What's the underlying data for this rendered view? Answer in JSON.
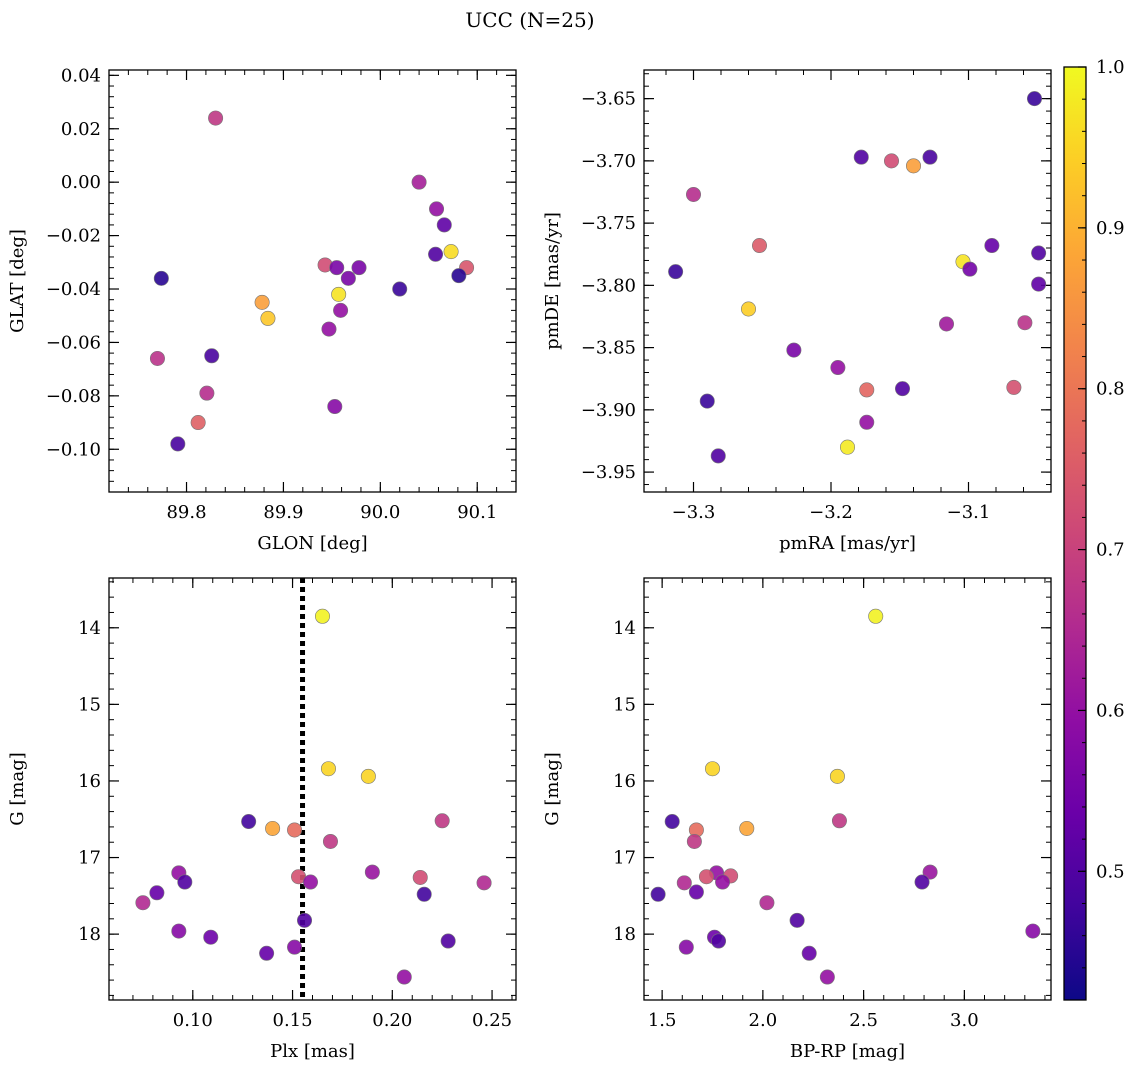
{
  "figure": {
    "title": "UCC (N=25)"
  },
  "colorbar": {
    "min": 0.42,
    "max": 1.0,
    "ticks": [
      0.5,
      0.6,
      0.7,
      0.8,
      0.9,
      1.0
    ],
    "tick_labels": [
      "0.5",
      "0.6",
      "0.7",
      "0.8",
      "0.9",
      "1.0"
    ],
    "colormap": "plasma",
    "colors": [
      "#0d0887",
      "#41049d",
      "#6a00a8",
      "#8f0da4",
      "#b12a90",
      "#cc4778",
      "#e16462",
      "#f2844b",
      "#fca636",
      "#fcce25",
      "#f0f921"
    ]
  },
  "chart_data": [
    {
      "type": "scatter",
      "id": "glon-glat",
      "xlabel": "GLON [deg]",
      "ylabel": "GLAT [deg]",
      "xlim": [
        89.72,
        90.14
      ],
      "ylim": [
        -0.116,
        0.042
      ],
      "y_inverted": false,
      "xticks": [
        89.8,
        89.9,
        90.0,
        90.1
      ],
      "xtick_labels": [
        "89.8",
        "89.9",
        "90.0",
        "90.1"
      ],
      "yticks": [
        -0.1,
        -0.08,
        -0.06,
        -0.04,
        -0.02,
        0.0,
        0.02,
        0.04
      ],
      "ytick_labels": [
        "−0.10",
        "−0.08",
        "−0.06",
        "−0.04",
        "−0.02",
        "0.00",
        "0.02",
        "0.04"
      ],
      "points": [
        {
          "x": 89.83,
          "y": 0.024,
          "c": 0.68
        },
        {
          "x": 90.04,
          "y": 0.0,
          "c": 0.63
        },
        {
          "x": 90.058,
          "y": -0.01,
          "c": 0.6
        },
        {
          "x": 90.066,
          "y": -0.016,
          "c": 0.52
        },
        {
          "x": 90.057,
          "y": -0.027,
          "c": 0.5
        },
        {
          "x": 90.073,
          "y": -0.026,
          "c": 0.96
        },
        {
          "x": 90.089,
          "y": -0.032,
          "c": 0.74
        },
        {
          "x": 90.081,
          "y": -0.035,
          "c": 0.45
        },
        {
          "x": 89.943,
          "y": -0.031,
          "c": 0.72
        },
        {
          "x": 89.955,
          "y": -0.032,
          "c": 0.56
        },
        {
          "x": 89.978,
          "y": -0.032,
          "c": 0.56
        },
        {
          "x": 89.967,
          "y": -0.036,
          "c": 0.56
        },
        {
          "x": 89.774,
          "y": -0.036,
          "c": 0.45
        },
        {
          "x": 90.02,
          "y": -0.04,
          "c": 0.47
        },
        {
          "x": 89.957,
          "y": -0.042,
          "c": 0.97
        },
        {
          "x": 89.878,
          "y": -0.045,
          "c": 0.87
        },
        {
          "x": 89.959,
          "y": -0.048,
          "c": 0.6
        },
        {
          "x": 89.884,
          "y": -0.051,
          "c": 0.93
        },
        {
          "x": 89.947,
          "y": -0.055,
          "c": 0.6
        },
        {
          "x": 89.826,
          "y": -0.065,
          "c": 0.49
        },
        {
          "x": 89.77,
          "y": -0.066,
          "c": 0.67
        },
        {
          "x": 89.821,
          "y": -0.079,
          "c": 0.66
        },
        {
          "x": 89.953,
          "y": -0.084,
          "c": 0.58
        },
        {
          "x": 89.812,
          "y": -0.09,
          "c": 0.76
        },
        {
          "x": 89.791,
          "y": -0.098,
          "c": 0.49
        }
      ]
    },
    {
      "type": "scatter",
      "id": "pmra-pmde",
      "xlabel": "pmRA [mas/yr]",
      "ylabel": "pmDE [mas/yr]",
      "xlim": [
        -3.336,
        -3.04
      ],
      "ylim": [
        -3.966,
        -3.627
      ],
      "y_inverted": false,
      "xticks": [
        -3.3,
        -3.2,
        -3.1
      ],
      "xtick_labels": [
        "−3.3",
        "−3.2",
        "−3.1"
      ],
      "yticks": [
        -3.95,
        -3.9,
        -3.85,
        -3.8,
        -3.75,
        -3.7,
        -3.65
      ],
      "ytick_labels": [
        "−3.95",
        "−3.90",
        "−3.85",
        "−3.80",
        "−3.75",
        "−3.70",
        "−3.65"
      ],
      "points": [
        {
          "x": -3.052,
          "y": -3.65,
          "c": 0.47
        },
        {
          "x": -3.178,
          "y": -3.697,
          "c": 0.5
        },
        {
          "x": -3.156,
          "y": -3.7,
          "c": 0.72
        },
        {
          "x": -3.14,
          "y": -3.704,
          "c": 0.87
        },
        {
          "x": -3.128,
          "y": -3.697,
          "c": 0.49
        },
        {
          "x": -3.3,
          "y": -3.727,
          "c": 0.66
        },
        {
          "x": -3.252,
          "y": -3.768,
          "c": 0.75
        },
        {
          "x": -3.083,
          "y": -3.768,
          "c": 0.53
        },
        {
          "x": -3.049,
          "y": -3.774,
          "c": 0.5
        },
        {
          "x": -3.104,
          "y": -3.781,
          "c": 0.97
        },
        {
          "x": -3.099,
          "y": -3.787,
          "c": 0.55
        },
        {
          "x": -3.313,
          "y": -3.789,
          "c": 0.47
        },
        {
          "x": -3.049,
          "y": -3.799,
          "c": 0.52
        },
        {
          "x": -3.26,
          "y": -3.819,
          "c": 0.94
        },
        {
          "x": -3.116,
          "y": -3.831,
          "c": 0.62
        },
        {
          "x": -3.059,
          "y": -3.83,
          "c": 0.67
        },
        {
          "x": -3.227,
          "y": -3.852,
          "c": 0.56
        },
        {
          "x": -3.195,
          "y": -3.866,
          "c": 0.6
        },
        {
          "x": -3.067,
          "y": -3.882,
          "c": 0.73
        },
        {
          "x": -3.174,
          "y": -3.884,
          "c": 0.77
        },
        {
          "x": -3.148,
          "y": -3.883,
          "c": 0.5
        },
        {
          "x": -3.29,
          "y": -3.893,
          "c": 0.47
        },
        {
          "x": -3.174,
          "y": -3.91,
          "c": 0.6
        },
        {
          "x": -3.188,
          "y": -3.93,
          "c": 0.98
        },
        {
          "x": -3.282,
          "y": -3.937,
          "c": 0.5
        }
      ]
    },
    {
      "type": "scatter",
      "id": "plx-g",
      "xlabel": "Plx [mas]",
      "ylabel": "G [mag]",
      "xlim": [
        0.058,
        0.262
      ],
      "ylim": [
        18.86,
        13.35
      ],
      "y_inverted": true,
      "xticks": [
        0.1,
        0.15,
        0.2,
        0.25
      ],
      "xtick_labels": [
        "0.10",
        "0.15",
        "0.20",
        "0.25"
      ],
      "yticks": [
        14,
        15,
        16,
        17,
        18
      ],
      "ytick_labels": [
        "14",
        "15",
        "16",
        "17",
        "18"
      ],
      "vline": 0.155,
      "points": [
        {
          "x": 0.165,
          "y": 13.85,
          "c": 0.99
        },
        {
          "x": 0.168,
          "y": 15.84,
          "c": 0.95
        },
        {
          "x": 0.188,
          "y": 15.94,
          "c": 0.95
        },
        {
          "x": 0.128,
          "y": 16.53,
          "c": 0.48
        },
        {
          "x": 0.225,
          "y": 16.52,
          "c": 0.68
        },
        {
          "x": 0.14,
          "y": 16.62,
          "c": 0.88
        },
        {
          "x": 0.151,
          "y": 16.64,
          "c": 0.78
        },
        {
          "x": 0.169,
          "y": 16.79,
          "c": 0.68
        },
        {
          "x": 0.093,
          "y": 17.2,
          "c": 0.6
        },
        {
          "x": 0.19,
          "y": 17.19,
          "c": 0.61
        },
        {
          "x": 0.153,
          "y": 17.25,
          "c": 0.73
        },
        {
          "x": 0.214,
          "y": 17.26,
          "c": 0.72
        },
        {
          "x": 0.096,
          "y": 17.32,
          "c": 0.5
        },
        {
          "x": 0.159,
          "y": 17.32,
          "c": 0.6
        },
        {
          "x": 0.246,
          "y": 17.33,
          "c": 0.65
        },
        {
          "x": 0.082,
          "y": 17.46,
          "c": 0.53
        },
        {
          "x": 0.216,
          "y": 17.48,
          "c": 0.48
        },
        {
          "x": 0.075,
          "y": 17.59,
          "c": 0.65
        },
        {
          "x": 0.156,
          "y": 17.82,
          "c": 0.5
        },
        {
          "x": 0.093,
          "y": 17.96,
          "c": 0.58
        },
        {
          "x": 0.109,
          "y": 18.04,
          "c": 0.54
        },
        {
          "x": 0.228,
          "y": 18.09,
          "c": 0.5
        },
        {
          "x": 0.151,
          "y": 18.17,
          "c": 0.58
        },
        {
          "x": 0.137,
          "y": 18.25,
          "c": 0.53
        },
        {
          "x": 0.206,
          "y": 18.56,
          "c": 0.6
        }
      ]
    },
    {
      "type": "scatter",
      "id": "bprp-g",
      "xlabel": "BP-RP [mag]",
      "ylabel": "G [mag]",
      "xlim": [
        1.41,
        3.43
      ],
      "ylim": [
        18.86,
        13.35
      ],
      "y_inverted": true,
      "xticks": [
        1.5,
        2.0,
        2.5,
        3.0
      ],
      "xtick_labels": [
        "1.5",
        "2.0",
        "2.5",
        "3.0"
      ],
      "yticks": [
        14,
        15,
        16,
        17,
        18
      ],
      "ytick_labels": [
        "14",
        "15",
        "16",
        "17",
        "18"
      ],
      "points": [
        {
          "x": 2.56,
          "y": 13.85,
          "c": 0.99
        },
        {
          "x": 1.75,
          "y": 15.84,
          "c": 0.95
        },
        {
          "x": 2.37,
          "y": 15.94,
          "c": 0.95
        },
        {
          "x": 1.55,
          "y": 16.53,
          "c": 0.48
        },
        {
          "x": 2.38,
          "y": 16.52,
          "c": 0.68
        },
        {
          "x": 1.92,
          "y": 16.62,
          "c": 0.88
        },
        {
          "x": 1.67,
          "y": 16.64,
          "c": 0.78
        },
        {
          "x": 1.66,
          "y": 16.79,
          "c": 0.68
        },
        {
          "x": 2.83,
          "y": 17.19,
          "c": 0.61
        },
        {
          "x": 1.77,
          "y": 17.2,
          "c": 0.6
        },
        {
          "x": 1.72,
          "y": 17.25,
          "c": 0.73
        },
        {
          "x": 1.84,
          "y": 17.24,
          "c": 0.72
        },
        {
          "x": 1.61,
          "y": 17.33,
          "c": 0.65
        },
        {
          "x": 1.8,
          "y": 17.32,
          "c": 0.6
        },
        {
          "x": 2.79,
          "y": 17.32,
          "c": 0.5
        },
        {
          "x": 1.67,
          "y": 17.45,
          "c": 0.53
        },
        {
          "x": 1.48,
          "y": 17.48,
          "c": 0.48
        },
        {
          "x": 2.02,
          "y": 17.59,
          "c": 0.65
        },
        {
          "x": 2.17,
          "y": 17.82,
          "c": 0.5
        },
        {
          "x": 3.34,
          "y": 17.96,
          "c": 0.58
        },
        {
          "x": 1.76,
          "y": 18.04,
          "c": 0.54
        },
        {
          "x": 1.78,
          "y": 18.09,
          "c": 0.5
        },
        {
          "x": 1.62,
          "y": 18.17,
          "c": 0.58
        },
        {
          "x": 2.23,
          "y": 18.25,
          "c": 0.53
        },
        {
          "x": 2.32,
          "y": 18.56,
          "c": 0.6
        }
      ]
    }
  ]
}
